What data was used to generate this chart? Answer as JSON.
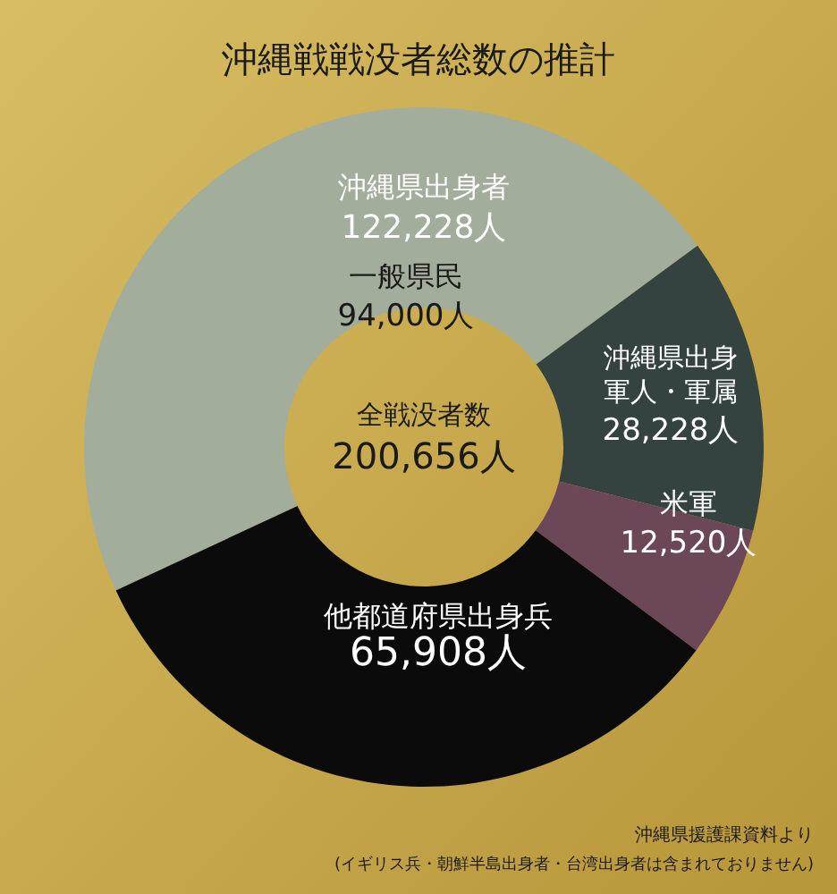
{
  "chart_data": {
    "type": "donut",
    "title": "沖縄戦戦没者総数の推計",
    "categories": [
      "一般県民",
      "沖縄県出身軍人・軍属",
      "米軍",
      "他都道府県出身兵"
    ],
    "values": [
      94000,
      28228,
      12520,
      65908
    ],
    "colors": [
      "#a3ad9b",
      "#34433f",
      "#6b4757",
      "#0b0b0b"
    ],
    "value_labels": [
      "94,000人",
      "28,228人",
      "12,520人",
      "65,908人"
    ],
    "annotations": [
      "沖縄県出身者 122,228人",
      "全戦没者数 200,656人",
      "沖縄県援護課資料より",
      "(イギリス兵・朝鮮半島出身者・台湾出身者は含まれておりません)"
    ]
  }
}
